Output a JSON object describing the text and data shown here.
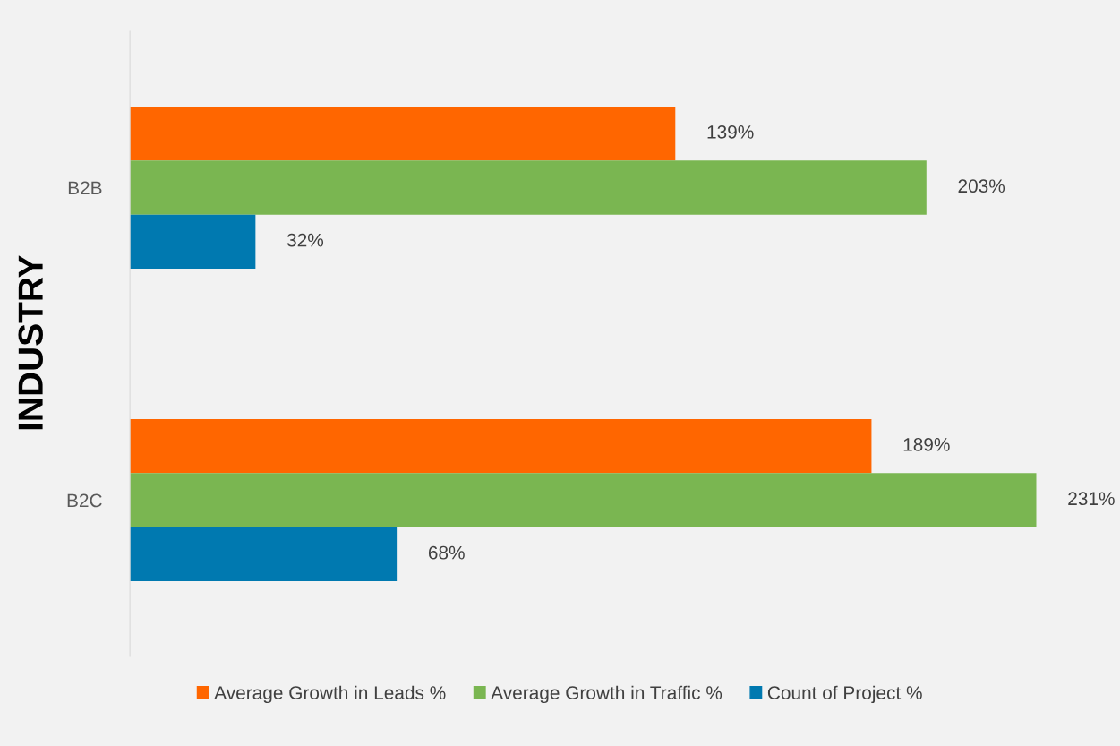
{
  "chart_data": {
    "type": "bar",
    "orientation": "horizontal",
    "ylabel": "INDUSTRY",
    "categories": [
      "B2B",
      "B2C"
    ],
    "series": [
      {
        "name": "Average Growth in Leads %",
        "color": "#ff6600",
        "values": [
          139,
          189
        ],
        "value_labels": [
          "139%",
          "189%"
        ]
      },
      {
        "name": "Average Growth in Traffic %",
        "color": "#7ab651",
        "values": [
          203,
          231
        ],
        "value_labels": [
          "203%",
          "231%"
        ]
      },
      {
        "name": "Count of Project %",
        "color": "#0079b0",
        "values": [
          32,
          68
        ],
        "value_labels": [
          "32%",
          "68%"
        ]
      }
    ],
    "legend": "bottom",
    "grid": false
  }
}
